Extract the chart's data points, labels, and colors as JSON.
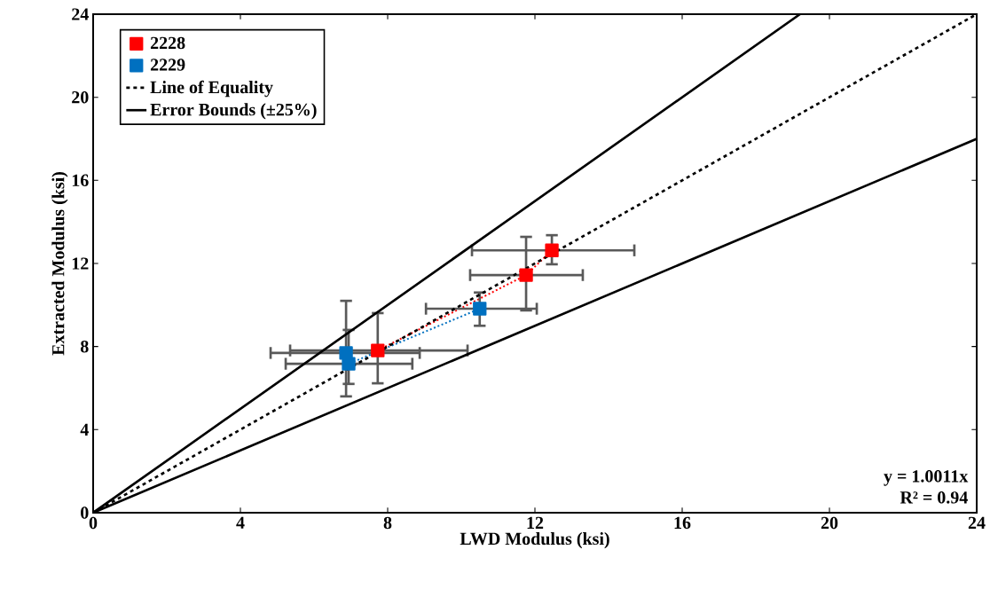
{
  "chart_data": {
    "type": "line",
    "xlabel": "LWD Modulus (ksi)",
    "ylabel": "Extracted Modulus (ksi)",
    "xlim": [
      0,
      24
    ],
    "ylim": [
      0,
      24
    ],
    "xticks": [
      0,
      4,
      8,
      12,
      16,
      20,
      24
    ],
    "yticks": [
      0,
      4,
      8,
      12,
      16,
      20,
      24
    ],
    "grid": false,
    "legend": "top left",
    "annotations": [
      "y = 1.0011x",
      "R² = 0.94"
    ],
    "series": [
      {
        "name": "2228",
        "color": "#ff0000",
        "line_style": "dotted",
        "marker": "square",
        "x": [
          7.73,
          11.76,
          12.46
        ],
        "values": [
          7.81,
          11.44,
          12.63
        ],
        "errors": [
          [
            6.23,
            9.61
          ],
          [
            9.74,
            13.28
          ],
          [
            11.96,
            13.36
          ]
        ],
        "xerrors": [
          [
            5.35,
            10.17
          ],
          [
            10.24,
            13.3
          ],
          [
            10.29,
            14.7
          ]
        ]
      },
      {
        "name": "2229",
        "color": "#0070c0",
        "line_style": "dotted",
        "marker": "square",
        "x": [
          6.87,
          6.94,
          10.5
        ],
        "values": [
          7.69,
          7.17,
          9.82
        ],
        "errors": [
          [
            5.6,
            10.2
          ],
          [
            6.2,
            8.8
          ],
          [
            9.0,
            10.6
          ]
        ],
        "xerrors": [
          [
            4.82,
            8.87
          ],
          [
            5.23,
            8.67
          ],
          [
            9.04,
            12.05
          ]
        ]
      },
      {
        "name": "Line of Equality",
        "color": "#000000",
        "line_style": "dashed",
        "marker": "none",
        "x": [
          0,
          24
        ],
        "values": [
          0,
          24
        ]
      },
      {
        "name": "Error Bounds (±25%)",
        "color": "#000000",
        "line_style": "solid",
        "marker": "none",
        "x": [
          0,
          19.2,
          0,
          24
        ],
        "values": [
          0,
          24,
          0,
          18
        ]
      }
    ]
  }
}
